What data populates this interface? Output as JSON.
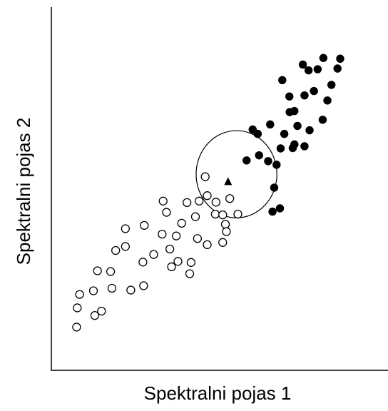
{
  "chart_data": {
    "type": "scatter",
    "xlabel": "Spektralni pojas 1",
    "ylabel": "Spektralni pojas 2",
    "xlim": [
      0,
      100
    ],
    "ylim": [
      0,
      100
    ],
    "grid": false,
    "legend": "none",
    "colors": {
      "axis": "#000000",
      "open_marker_fill": "#ffffff",
      "filled_marker_fill": "#000000"
    },
    "series": [
      {
        "marker": "open-circle",
        "points": [
          [
            7.5,
            11.9
          ],
          [
            7.7,
            17.2
          ],
          [
            8.4,
            20.9
          ],
          [
            12.9,
            15.1
          ],
          [
            12.5,
            21.9
          ],
          [
            14.9,
            16.3
          ],
          [
            13.7,
            27.4
          ],
          [
            18.0,
            22.6
          ],
          [
            17.6,
            27.2
          ],
          [
            19.1,
            33.0
          ],
          [
            23.6,
            22.1
          ],
          [
            22.0,
            34.1
          ],
          [
            22.0,
            39.0
          ],
          [
            27.4,
            23.3
          ],
          [
            27.2,
            29.8
          ],
          [
            27.6,
            39.9
          ],
          [
            30.4,
            31.9
          ],
          [
            32.9,
            37.5
          ],
          [
            34.2,
            43.5
          ],
          [
            35.2,
            33.4
          ],
          [
            35.7,
            28.5
          ],
          [
            37.6,
            30.0
          ],
          [
            37.1,
            37.0
          ],
          [
            38.7,
            40.5
          ],
          [
            41.1,
            26.6
          ],
          [
            41.5,
            29.7
          ],
          [
            42.8,
            42.3
          ],
          [
            43.4,
            36.3
          ],
          [
            46.3,
            34.6
          ],
          [
            40.3,
            46.2
          ],
          [
            43.9,
            46.6
          ],
          [
            46.3,
            48.1
          ],
          [
            48.7,
            43.0
          ],
          [
            45.7,
            53.3
          ],
          [
            48.9,
            46.3
          ],
          [
            50.9,
            42.8
          ],
          [
            51.7,
            40.2
          ],
          [
            50.9,
            35.2
          ],
          [
            53.0,
            47.3
          ],
          [
            55.4,
            43.0
          ],
          [
            52.0,
            38.2
          ],
          [
            33.2,
            46.6
          ]
        ]
      },
      {
        "marker": "filled-circle",
        "points": [
          [
            58.0,
            57.8
          ],
          [
            61.7,
            59.2
          ],
          [
            59.8,
            66.3
          ],
          [
            61.3,
            65.1
          ],
          [
            65.0,
            67.7
          ],
          [
            69.2,
            65.1
          ],
          [
            72.2,
            62.2
          ],
          [
            73.1,
            67.3
          ],
          [
            72.2,
            71.4
          ],
          [
            75.2,
            75.7
          ],
          [
            78.0,
            76.9
          ],
          [
            82.0,
            74.3
          ],
          [
            83.2,
            78.6
          ],
          [
            76.4,
            82.6
          ],
          [
            74.7,
            84.2
          ],
          [
            80.8,
            86.0
          ],
          [
            85.8,
            85.8
          ],
          [
            85.0,
            83.1
          ],
          [
            79.1,
            82.9
          ],
          [
            68.6,
            79.9
          ],
          [
            70.7,
            75.4
          ],
          [
            70.8,
            71.1
          ],
          [
            71.7,
            61.2
          ],
          [
            68.1,
            61.1
          ],
          [
            64.4,
            57.6
          ],
          [
            66.9,
            56.6
          ],
          [
            66.2,
            50.3
          ],
          [
            65.7,
            43.7
          ],
          [
            67.9,
            44.6
          ],
          [
            75.2,
            61.7
          ],
          [
            76.7,
            66.1
          ],
          [
            80.6,
            69.0
          ]
        ]
      }
    ],
    "annotations": [
      {
        "marker": "filled-triangle",
        "x": 52.5,
        "y": 52.0
      },
      {
        "shape": "circle",
        "center": [
          55.0,
          54.0
        ],
        "radius": 12.0
      }
    ]
  }
}
